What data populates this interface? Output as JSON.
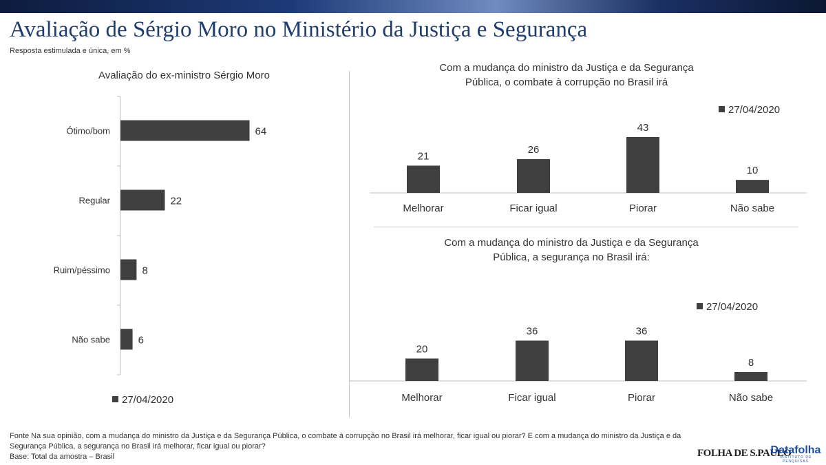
{
  "header": {
    "title": "Avaliação de Sérgio Moro no Ministério da Justiça e Segurança",
    "subtitle": "Resposta estimulada e única, em %"
  },
  "colors": {
    "bar": "#3f3f3f",
    "title": "#1f3d6e",
    "axis": "#bfbfbf"
  },
  "chart_data": [
    {
      "type": "bar",
      "orientation": "horizontal",
      "title": "Avaliação do ex-ministro Sérgio Moro",
      "categories": [
        "Ótimo/bom",
        "Regular",
        "Ruim/péssimo",
        "Não sabe"
      ],
      "series": [
        {
          "name": "27/04/2020",
          "values": [
            64,
            22,
            8,
            6
          ]
        }
      ],
      "xlim": [
        0,
        100
      ],
      "legend": "bottom-left",
      "grid": false
    },
    {
      "type": "bar",
      "orientation": "vertical",
      "title_lines": [
        "Com a mudança do ministro da Justiça e da Segurança",
        "Pública, o combate à corrupção no Brasil irá"
      ],
      "categories": [
        "Melhorar",
        "Ficar igual",
        "Piorar",
        "Não sabe"
      ],
      "series": [
        {
          "name": "27/04/2020",
          "values": [
            21,
            26,
            43,
            10
          ]
        }
      ],
      "ylim": [
        0,
        50
      ],
      "legend": "top-right",
      "grid": false
    },
    {
      "type": "bar",
      "orientation": "vertical",
      "title_lines": [
        "Com a mudança do ministro da Justiça e da Segurança",
        "Pública, a segurança no Brasil irá:"
      ],
      "categories": [
        "Melhorar",
        "Ficar igual",
        "Piorar",
        "Não sabe"
      ],
      "series": [
        {
          "name": "27/04/2020",
          "values": [
            20,
            36,
            36,
            8
          ]
        }
      ],
      "ylim": [
        0,
        40
      ],
      "legend": "top-right",
      "grid": false
    }
  ],
  "footer": {
    "line1": "Fonte Na sua opinião, com a mudança do ministro da Justiça e da Segurança Pública, o combate à corrupção no Brasil irá melhorar, ficar igual ou piorar? E  com a mudança do ministro da Justiça e da",
    "line2": "Segurança Pública, a segurança no Brasil irá melhorar, ficar igual ou piorar?",
    "line3": "Base: Total da amostra – Brasil"
  },
  "logos": {
    "folha": "FOLHA DE S.PAULO",
    "datafolha": "Datafolha",
    "datafolha_sub": "INSTITUTO DE PESQUISAS"
  }
}
